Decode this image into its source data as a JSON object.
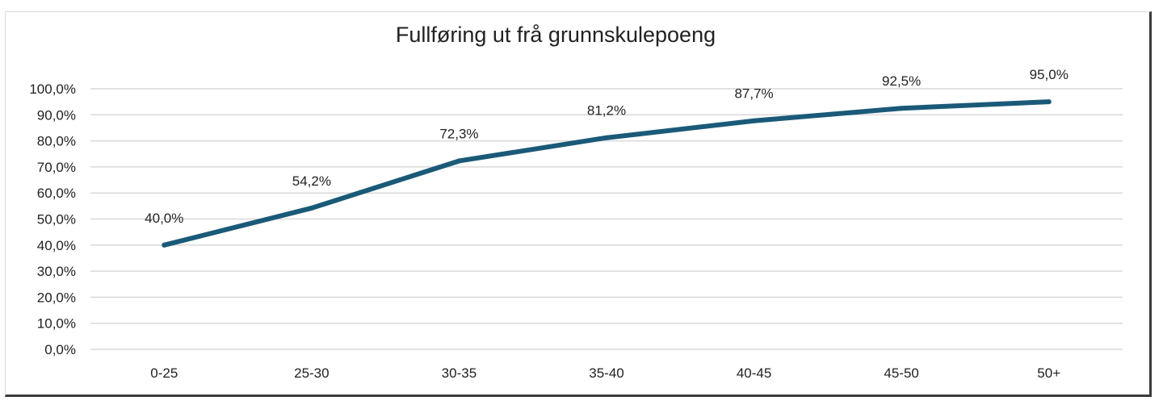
{
  "chart_data": {
    "type": "line",
    "title": "Fullføring ut frå grunnskulepoeng",
    "xlabel": "",
    "ylabel": "",
    "categories": [
      "0-25",
      "25-30",
      "30-35",
      "35-40",
      "40-45",
      "45-50",
      "50+"
    ],
    "series": [
      {
        "values": [
          40.0,
          54.2,
          72.3,
          81.2,
          87.7,
          92.5,
          95.0
        ],
        "data_labels": [
          "40,0%",
          "54,2%",
          "72,3%",
          "81,2%",
          "87,7%",
          "92,5%",
          "95,0%"
        ],
        "color": "#1a5a78"
      }
    ],
    "ylim": [
      0,
      100
    ],
    "yticks": [
      0,
      10,
      20,
      30,
      40,
      50,
      60,
      70,
      80,
      90,
      100
    ],
    "ytick_labels": [
      "0,0%",
      "10,0%",
      "20,0%",
      "30,0%",
      "40,0%",
      "50,0%",
      "60,0%",
      "70,0%",
      "80,0%",
      "90,0%",
      "100,0%"
    ],
    "grid": true,
    "legend": "none",
    "gridline_color": "#d9d9d9"
  }
}
